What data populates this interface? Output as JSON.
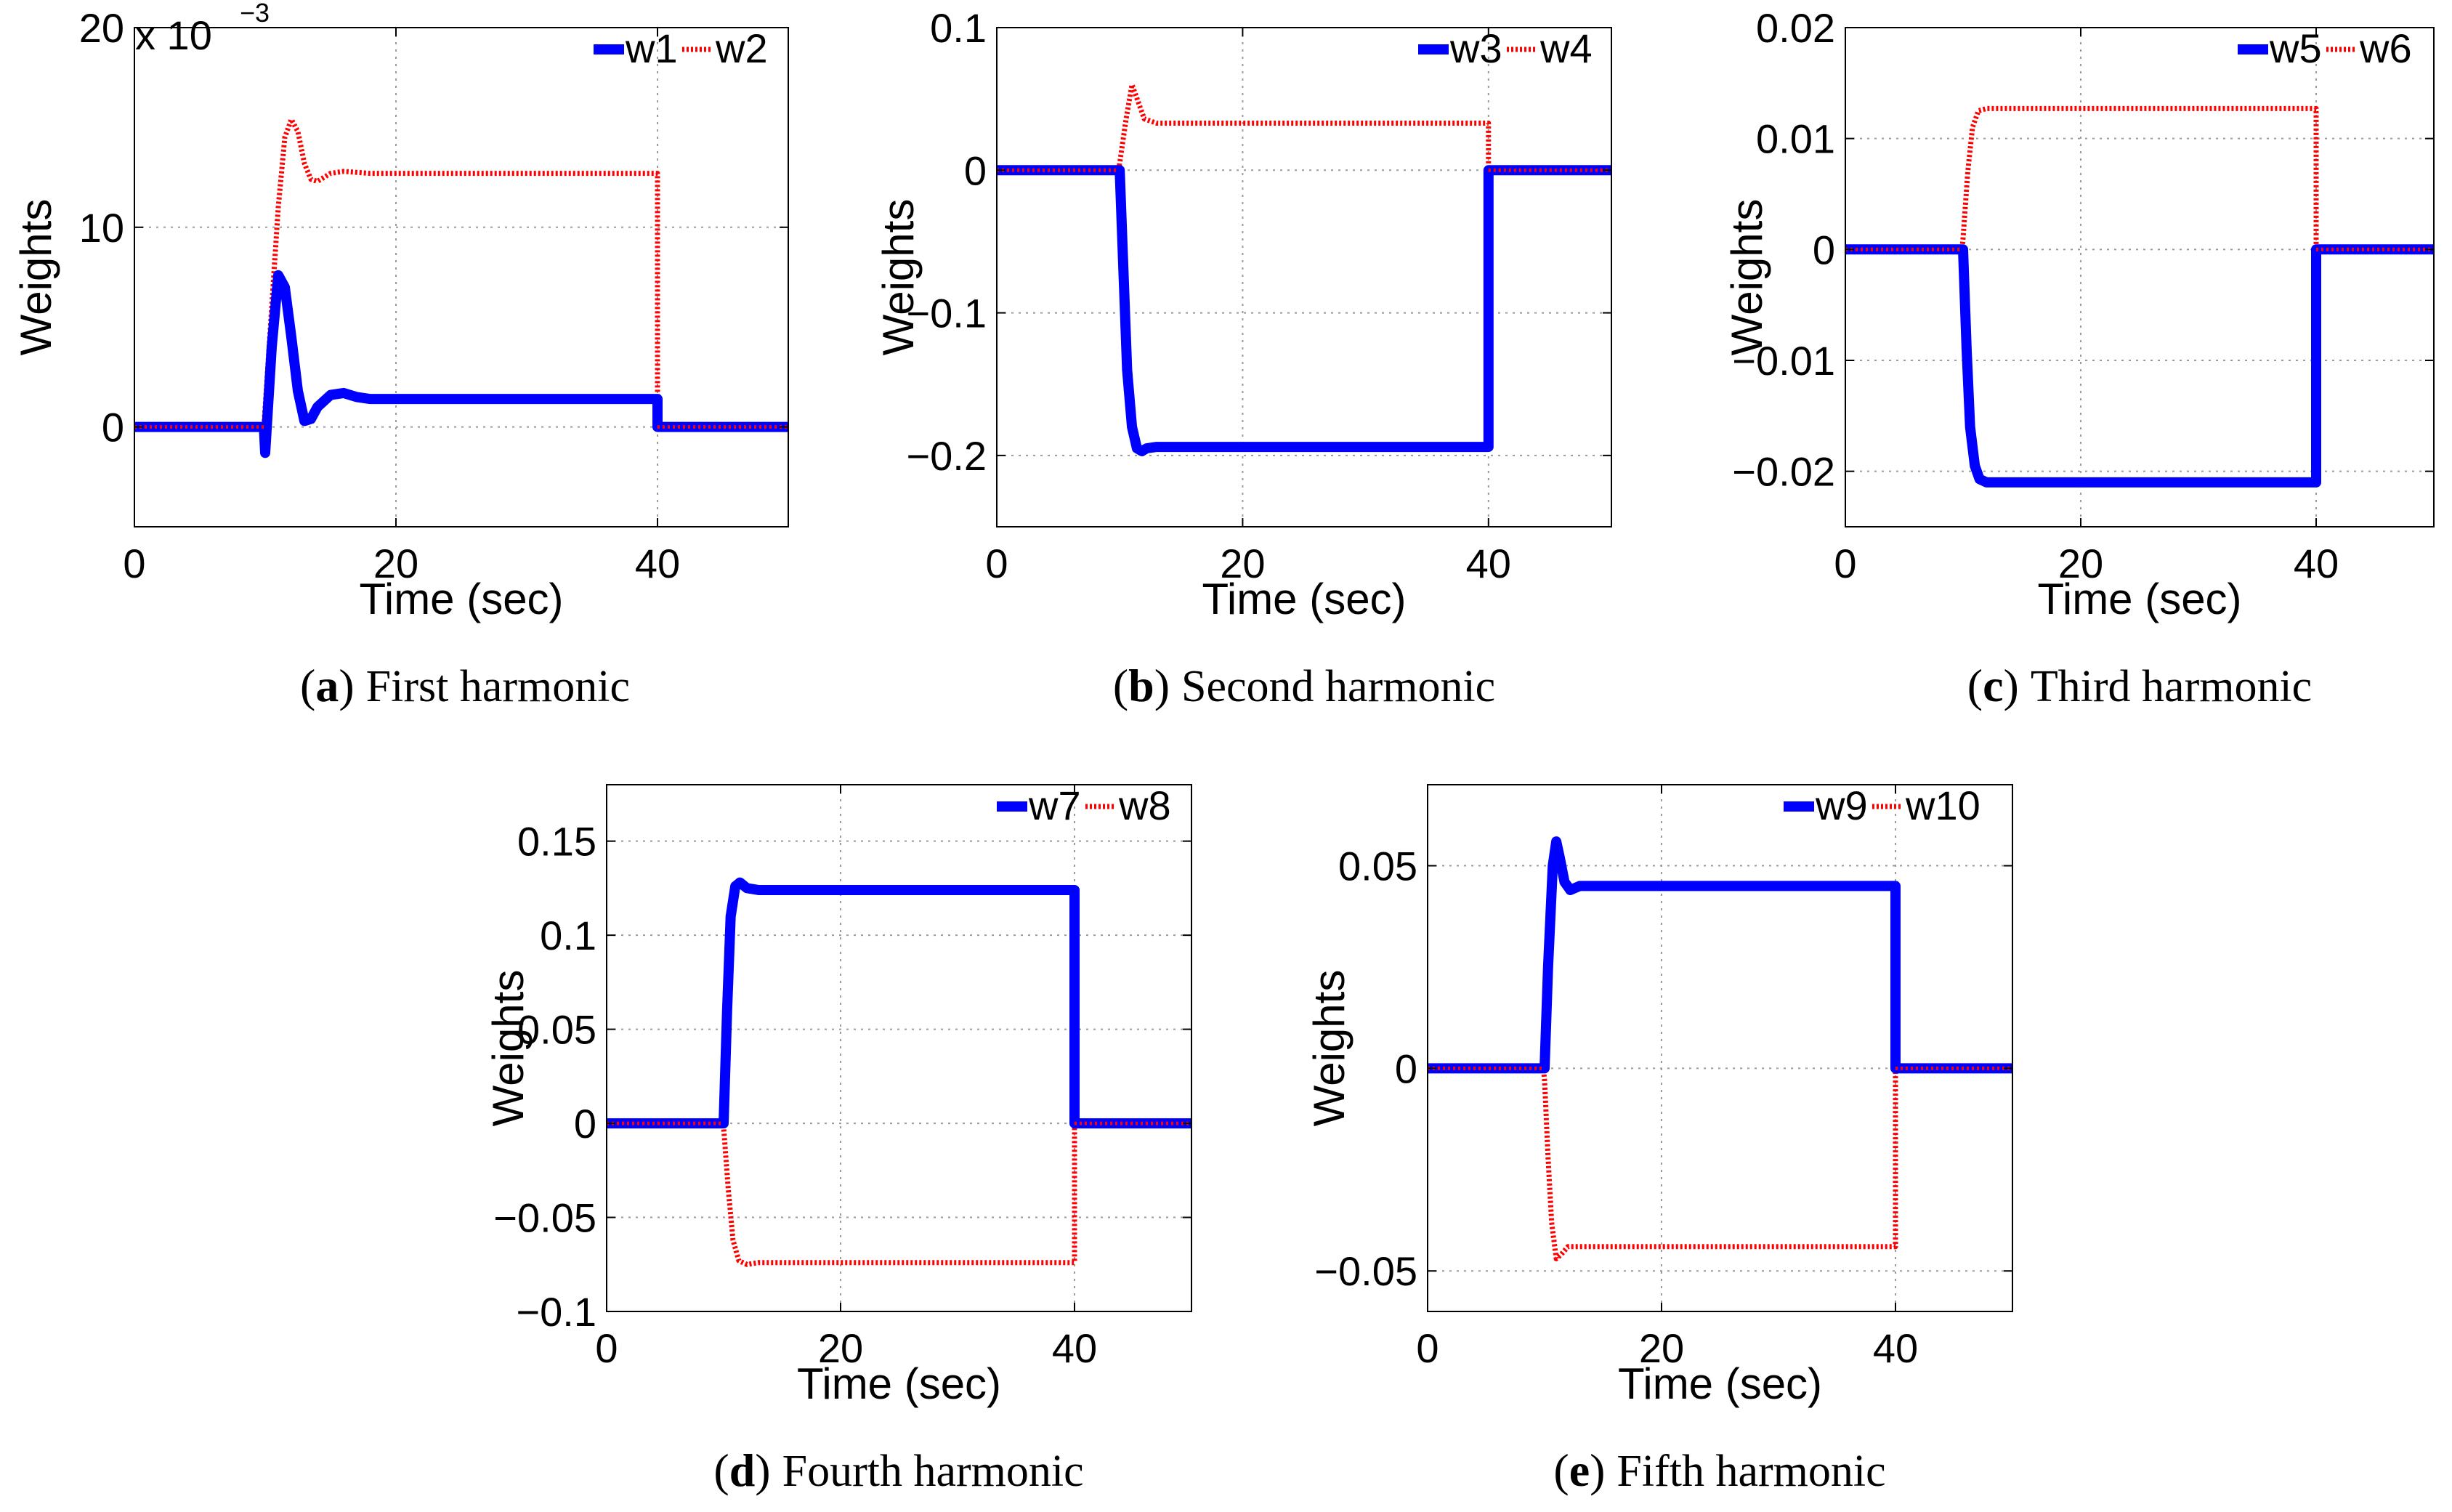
{
  "chart_data": [
    {
      "id": "a",
      "type": "line",
      "caption_letter": "a",
      "caption": "First harmonic",
      "xlabel": "Time (sec)",
      "ylabel": "Weights",
      "xlim": [
        0,
        50
      ],
      "ylim": [
        -0.005,
        0.02
      ],
      "xticks": [
        0,
        20,
        40
      ],
      "xtick_labels": [
        "0",
        "20",
        "40"
      ],
      "yticks": [
        0,
        0.01,
        0.02
      ],
      "ytick_labels": [
        "0",
        "10",
        "20"
      ],
      "exponent_base": "x 10",
      "exponent_power": "−3",
      "grid": true,
      "legend_position": "top-right",
      "series": [
        {
          "name": "w1",
          "color": "#0000ff",
          "style": "solid",
          "x": [
            0,
            9.9,
            10,
            10.5,
            11,
            11.5,
            12,
            12.5,
            13,
            13.5,
            14,
            15,
            16,
            17,
            18,
            20,
            40,
            40,
            50
          ],
          "y": [
            0,
            0,
            -0.0013,
            0.004,
            0.0076,
            0.007,
            0.0045,
            0.0018,
            0.0003,
            0.0004,
            0.001,
            0.0016,
            0.0017,
            0.0015,
            0.0014,
            0.0014,
            0.0014,
            0,
            0
          ]
        },
        {
          "name": "w2",
          "color": "#ff0000",
          "style": "dotted",
          "x": [
            0,
            9.9,
            10,
            10.5,
            11,
            11.5,
            12,
            12.5,
            13,
            13.5,
            14,
            15,
            16,
            18,
            20,
            30,
            40,
            40,
            50
          ],
          "y": [
            0,
            0,
            0.001,
            0.006,
            0.011,
            0.0145,
            0.0154,
            0.0148,
            0.0132,
            0.0124,
            0.0123,
            0.0127,
            0.0128,
            0.0127,
            0.0127,
            0.0127,
            0.0127,
            0,
            0
          ]
        }
      ]
    },
    {
      "id": "b",
      "type": "line",
      "caption_letter": "b",
      "caption": "Second harmonic",
      "xlabel": "Time (sec)",
      "ylabel": "Weights",
      "xlim": [
        0,
        50
      ],
      "ylim": [
        -0.25,
        0.1
      ],
      "xticks": [
        0,
        20,
        40
      ],
      "xtick_labels": [
        "0",
        "20",
        "40"
      ],
      "yticks": [
        -0.2,
        -0.1,
        0,
        0.1
      ],
      "ytick_labels": [
        "−0.2",
        "−0.1",
        "0",
        "0.1"
      ],
      "grid": true,
      "legend_position": "top-right",
      "series": [
        {
          "name": "w3",
          "color": "#0000ff",
          "style": "solid",
          "x": [
            0,
            9.9,
            10,
            10.3,
            10.6,
            11,
            11.4,
            11.8,
            12.2,
            13,
            15,
            40,
            40,
            50
          ],
          "y": [
            0,
            0,
            0,
            -0.07,
            -0.14,
            -0.18,
            -0.195,
            -0.197,
            -0.195,
            -0.194,
            -0.194,
            -0.194,
            0,
            0
          ]
        },
        {
          "name": "w4",
          "color": "#ff0000",
          "style": "dotted",
          "x": [
            0,
            9.9,
            10,
            10.5,
            11,
            11.5,
            12,
            13,
            14,
            20,
            40,
            40,
            50
          ],
          "y": [
            0,
            0,
            0.005,
            0.035,
            0.06,
            0.048,
            0.036,
            0.033,
            0.033,
            0.033,
            0.033,
            0,
            0
          ]
        }
      ]
    },
    {
      "id": "c",
      "type": "line",
      "caption_letter": "c",
      "caption": "Third harmonic",
      "xlabel": "Time (sec)",
      "ylabel": "Weights",
      "xlim": [
        0,
        50
      ],
      "ylim": [
        -0.025,
        0.02
      ],
      "xticks": [
        0,
        20,
        40
      ],
      "xtick_labels": [
        "0",
        "20",
        "40"
      ],
      "yticks": [
        -0.02,
        -0.01,
        0,
        0.01,
        0.02
      ],
      "ytick_labels": [
        "−0.02",
        "−0.01",
        "0",
        "0.01",
        "0.02"
      ],
      "grid": true,
      "legend_position": "top-right",
      "series": [
        {
          "name": "w5",
          "color": "#0000ff",
          "style": "solid",
          "x": [
            0,
            9.9,
            10,
            10.3,
            10.6,
            11,
            11.4,
            12,
            13,
            20,
            40,
            40,
            50
          ],
          "y": [
            0,
            0,
            0,
            -0.009,
            -0.016,
            -0.0195,
            -0.0207,
            -0.021,
            -0.021,
            -0.021,
            -0.021,
            0,
            0
          ]
        },
        {
          "name": "w6",
          "color": "#ff0000",
          "style": "dotted",
          "x": [
            0,
            9.9,
            10,
            10.4,
            10.8,
            11.3,
            12,
            13,
            20,
            40,
            40,
            50
          ],
          "y": [
            0,
            0,
            0.001,
            0.007,
            0.011,
            0.0125,
            0.0127,
            0.0127,
            0.0127,
            0.0127,
            0,
            0
          ]
        }
      ]
    },
    {
      "id": "d",
      "type": "line",
      "caption_letter": "d",
      "caption": "Fourth harmonic",
      "xlabel": "Time (sec)",
      "ylabel": "Weights",
      "xlim": [
        0,
        50
      ],
      "ylim": [
        -0.1,
        0.18
      ],
      "xticks": [
        0,
        20,
        40
      ],
      "xtick_labels": [
        "0",
        "20",
        "40"
      ],
      "yticks": [
        -0.1,
        -0.05,
        0,
        0.05,
        0.1,
        0.15
      ],
      "ytick_labels": [
        "−0.1",
        "−0.05",
        "0",
        "0.05",
        "0.1",
        "0.15"
      ],
      "grid": true,
      "legend_position": "top-right",
      "series": [
        {
          "name": "w7",
          "color": "#0000ff",
          "style": "solid",
          "x": [
            0,
            9.9,
            10,
            10.3,
            10.6,
            11,
            11.4,
            12,
            13,
            20,
            40,
            40,
            50
          ],
          "y": [
            0,
            0,
            0,
            0.06,
            0.11,
            0.126,
            0.128,
            0.125,
            0.124,
            0.124,
            0.124,
            0,
            0
          ]
        },
        {
          "name": "w8",
          "color": "#ff0000",
          "style": "dotted",
          "x": [
            0,
            9.9,
            10,
            10.4,
            10.8,
            11.3,
            12,
            13,
            20,
            40,
            40,
            50
          ],
          "y": [
            0,
            0,
            -0.002,
            -0.035,
            -0.062,
            -0.073,
            -0.075,
            -0.074,
            -0.074,
            -0.074,
            0,
            0
          ]
        }
      ]
    },
    {
      "id": "e",
      "type": "line",
      "caption_letter": "e",
      "caption": "Fifth harmonic",
      "xlabel": "Time (sec)",
      "ylabel": "Weights",
      "xlim": [
        0,
        50
      ],
      "ylim": [
        -0.06,
        0.07
      ],
      "xticks": [
        0,
        20,
        40
      ],
      "xtick_labels": [
        "0",
        "20",
        "40"
      ],
      "yticks": [
        -0.05,
        0,
        0.05
      ],
      "ytick_labels": [
        "−0.05",
        "0",
        "0.05"
      ],
      "grid": true,
      "legend_position": "top-right",
      "series": [
        {
          "name": "w9",
          "color": "#0000ff",
          "style": "solid",
          "x": [
            0,
            9.9,
            10,
            10.3,
            10.7,
            11,
            11.3,
            11.7,
            12.2,
            13,
            20,
            40,
            40,
            50
          ],
          "y": [
            0,
            0,
            0,
            0.025,
            0.05,
            0.056,
            0.052,
            0.046,
            0.044,
            0.045,
            0.045,
            0.045,
            0,
            0
          ]
        },
        {
          "name": "w10",
          "color": "#ff0000",
          "style": "dotted",
          "x": [
            0,
            9.9,
            10,
            10.3,
            10.6,
            11,
            11.4,
            12,
            13,
            20,
            40,
            40,
            50
          ],
          "y": [
            0,
            0,
            -0.003,
            -0.022,
            -0.038,
            -0.047,
            -0.046,
            -0.044,
            -0.044,
            -0.044,
            -0.044,
            0,
            0
          ]
        }
      ]
    }
  ]
}
